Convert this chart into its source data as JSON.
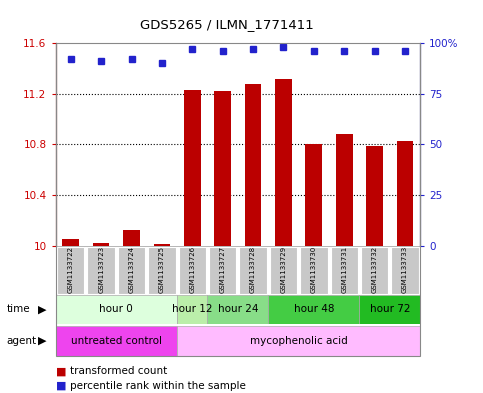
{
  "title": "GDS5265 / ILMN_1771411",
  "samples": [
    "GSM1133722",
    "GSM1133723",
    "GSM1133724",
    "GSM1133725",
    "GSM1133726",
    "GSM1133727",
    "GSM1133728",
    "GSM1133729",
    "GSM1133730",
    "GSM1133731",
    "GSM1133732",
    "GSM1133733"
  ],
  "bar_values": [
    10.05,
    10.02,
    10.12,
    10.01,
    11.23,
    11.22,
    11.28,
    11.32,
    10.8,
    10.88,
    10.79,
    10.83
  ],
  "percentile_values": [
    92,
    91,
    92,
    90,
    97,
    96,
    97,
    98,
    96,
    96,
    96,
    96
  ],
  "bar_color": "#bb0000",
  "dot_color": "#2222cc",
  "ylim_left": [
    10.0,
    11.6
  ],
  "ylim_right": [
    0,
    100
  ],
  "yticks_left": [
    10.0,
    10.4,
    10.8,
    11.2,
    11.6
  ],
  "yticks_right": [
    0,
    25,
    50,
    75,
    100
  ],
  "ytick_labels_left": [
    "10",
    "10.4",
    "10.8",
    "11.2",
    "11.6"
  ],
  "ytick_labels_right": [
    "0",
    "25",
    "50",
    "75",
    "100%"
  ],
  "time_groups": [
    {
      "label": "hour 0",
      "start": 0,
      "end": 4,
      "color": "#ddffdd"
    },
    {
      "label": "hour 12",
      "start": 4,
      "end": 5,
      "color": "#bbeeaa"
    },
    {
      "label": "hour 24",
      "start": 5,
      "end": 7,
      "color": "#88dd88"
    },
    {
      "label": "hour 48",
      "start": 7,
      "end": 10,
      "color": "#44cc44"
    },
    {
      "label": "hour 72",
      "start": 10,
      "end": 12,
      "color": "#22bb22"
    }
  ],
  "agent_untreated_color": "#ee44ee",
  "agent_myco_color": "#ffbbff",
  "legend_bar_label": "transformed count",
  "legend_dot_label": "percentile rank within the sample",
  "sample_box_color": "#c8c8c8",
  "sample_box_edge": "#ffffff"
}
